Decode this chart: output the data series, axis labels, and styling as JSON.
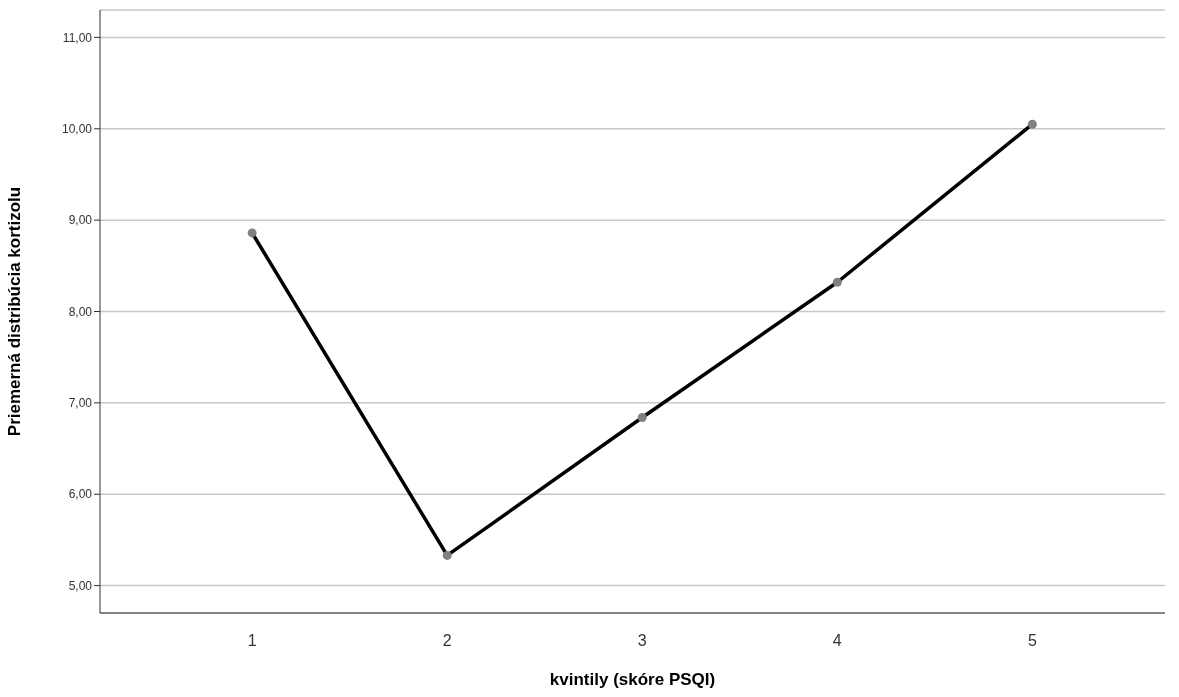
{
  "chart_data": {
    "type": "line",
    "xlabel": "kvintily (skóre PSQI)",
    "ylabel": "Priemerná distribúcia kortizolu",
    "categories": [
      "1",
      "2",
      "3",
      "4",
      "5"
    ],
    "series": [
      {
        "color": "#000000",
        "values": [
          8.86,
          5.33,
          6.84,
          8.32,
          10.05
        ]
      }
    ],
    "ylim": [
      4.7,
      11.3
    ],
    "yticks": [
      {
        "value": 5,
        "label": "5,00"
      },
      {
        "value": 6,
        "label": "6,00"
      },
      {
        "value": 7,
        "label": "7,00"
      },
      {
        "value": 8,
        "label": "8,00"
      },
      {
        "value": 9,
        "label": "9,00"
      },
      {
        "value": 10,
        "label": "10,00"
      },
      {
        "value": 11,
        "label": "11,00"
      }
    ],
    "grid": "y",
    "marker": "circle",
    "line_style": "solid",
    "legend": false
  }
}
